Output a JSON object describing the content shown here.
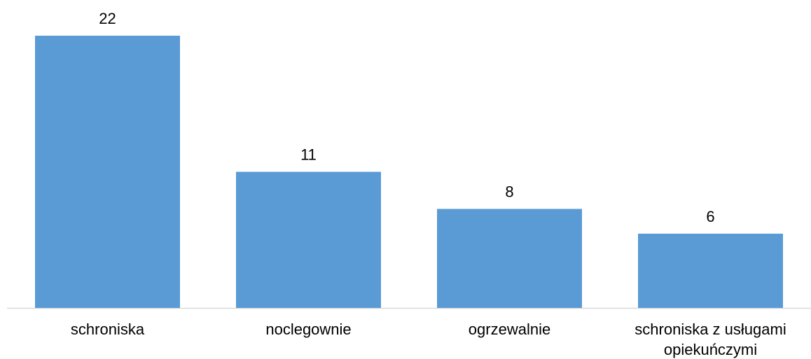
{
  "chart_data": {
    "type": "bar",
    "categories": [
      "schroniska",
      "noclegownie",
      "ogrzewalnie",
      "schroniska z usługami opiekuńczymi"
    ],
    "category_lines": [
      [
        "schroniska"
      ],
      [
        "noclegownie"
      ],
      [
        "ogrzewalnie"
      ],
      [
        "schroniska z usługami",
        "opiekuńczymi"
      ]
    ],
    "values": [
      22,
      11,
      8,
      6
    ],
    "data_labels": [
      "22",
      "11",
      "8",
      "6"
    ],
    "ylim": [
      0,
      22
    ],
    "grid": false,
    "legend": "none",
    "bar_color": "#5b9bd5",
    "axis_color": "#d9d9d9"
  }
}
